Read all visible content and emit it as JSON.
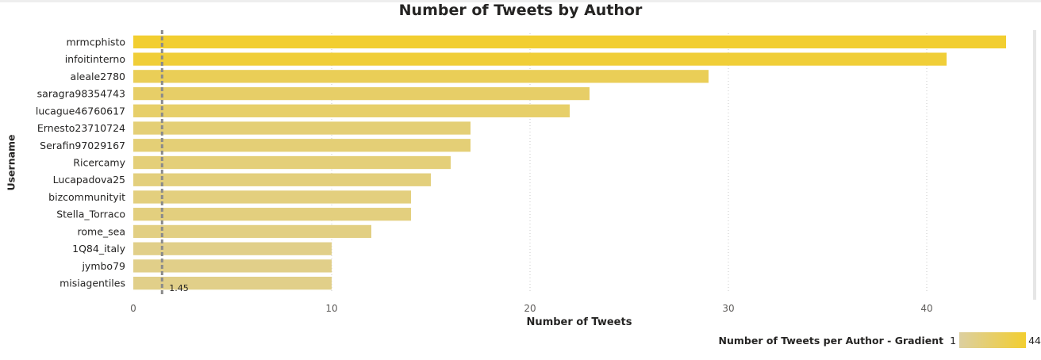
{
  "chart_data": {
    "type": "bar",
    "orientation": "horizontal",
    "title": "Number of Tweets by Author",
    "xlabel": "Number of Tweets",
    "ylabel": "Username",
    "xlim": [
      0,
      44
    ],
    "xticks": [
      0,
      10,
      20,
      30,
      40
    ],
    "grid": true,
    "categories": [
      "mrmcphisto",
      "infoitinterno",
      "aleale2780",
      "saragra98354743",
      "lucague46760617",
      "Ernesto23710724",
      "Serafin97029167",
      "Ricercamy",
      "Lucapadova25",
      "bizcommunityit",
      "Stella_Torraco",
      "rome_sea",
      "1Q84_italy",
      "jymbo79",
      "misiagentiles"
    ],
    "values": [
      44,
      41,
      29,
      23,
      22,
      17,
      17,
      16,
      15,
      14,
      14,
      12,
      10,
      10,
      10
    ],
    "reference_line": {
      "value": 1.45,
      "label": "1.45"
    },
    "legend": {
      "title": "Number of Tweets per Author - Gradient",
      "min_label": "1",
      "max_label": "44",
      "min_color": "#dccfa0",
      "max_color": "#f2ce30",
      "placement": "bottom-right"
    }
  }
}
